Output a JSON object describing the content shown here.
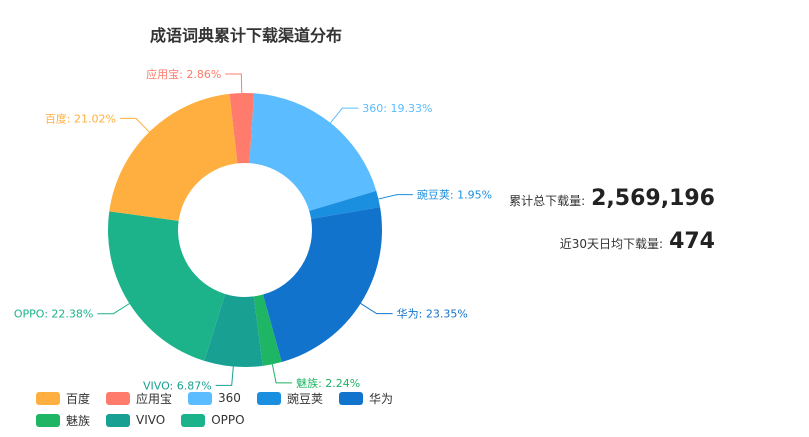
{
  "chart_data": {
    "type": "pie",
    "title": "成语词典累计下载渠道分布",
    "slices": [
      {
        "name": "应用宝",
        "value": 2.86,
        "label": "应用宝: 2.86%",
        "color": "#ff7b6b"
      },
      {
        "name": "360",
        "value": 19.33,
        "label": "360: 19.33%",
        "color": "#5bbcff"
      },
      {
        "name": "豌豆荚",
        "value": 1.95,
        "label": "豌豆荚: 1.95%",
        "color": "#1a8fe0"
      },
      {
        "name": "华为",
        "value": 23.35,
        "label": "华为: 23.35%",
        "color": "#1173cc"
      },
      {
        "name": "魅族",
        "value": 2.24,
        "label": "魅族: 2.24%",
        "color": "#1eb564"
      },
      {
        "name": "VIVO",
        "value": 6.87,
        "label": "VIVO: 6.87%",
        "color": "#18a093"
      },
      {
        "name": "OPPO",
        "value": 22.38,
        "label": "OPPO: 22.38%",
        "color": "#1cb38a"
      },
      {
        "name": "百度",
        "value": 21.02,
        "label": "百度: 21.02%",
        "color": "#ffaf3f"
      }
    ],
    "legend": [
      "百度",
      "应用宝",
      "360",
      "豌豆荚",
      "华为",
      "魅族",
      "VIVO",
      "OPPO"
    ],
    "legend_position": "bottom-left"
  },
  "stats": {
    "total_label": "累计总下载量:",
    "total_value": "2,569,196",
    "avg_label": "近30天日均下载量:",
    "avg_value": "474"
  }
}
